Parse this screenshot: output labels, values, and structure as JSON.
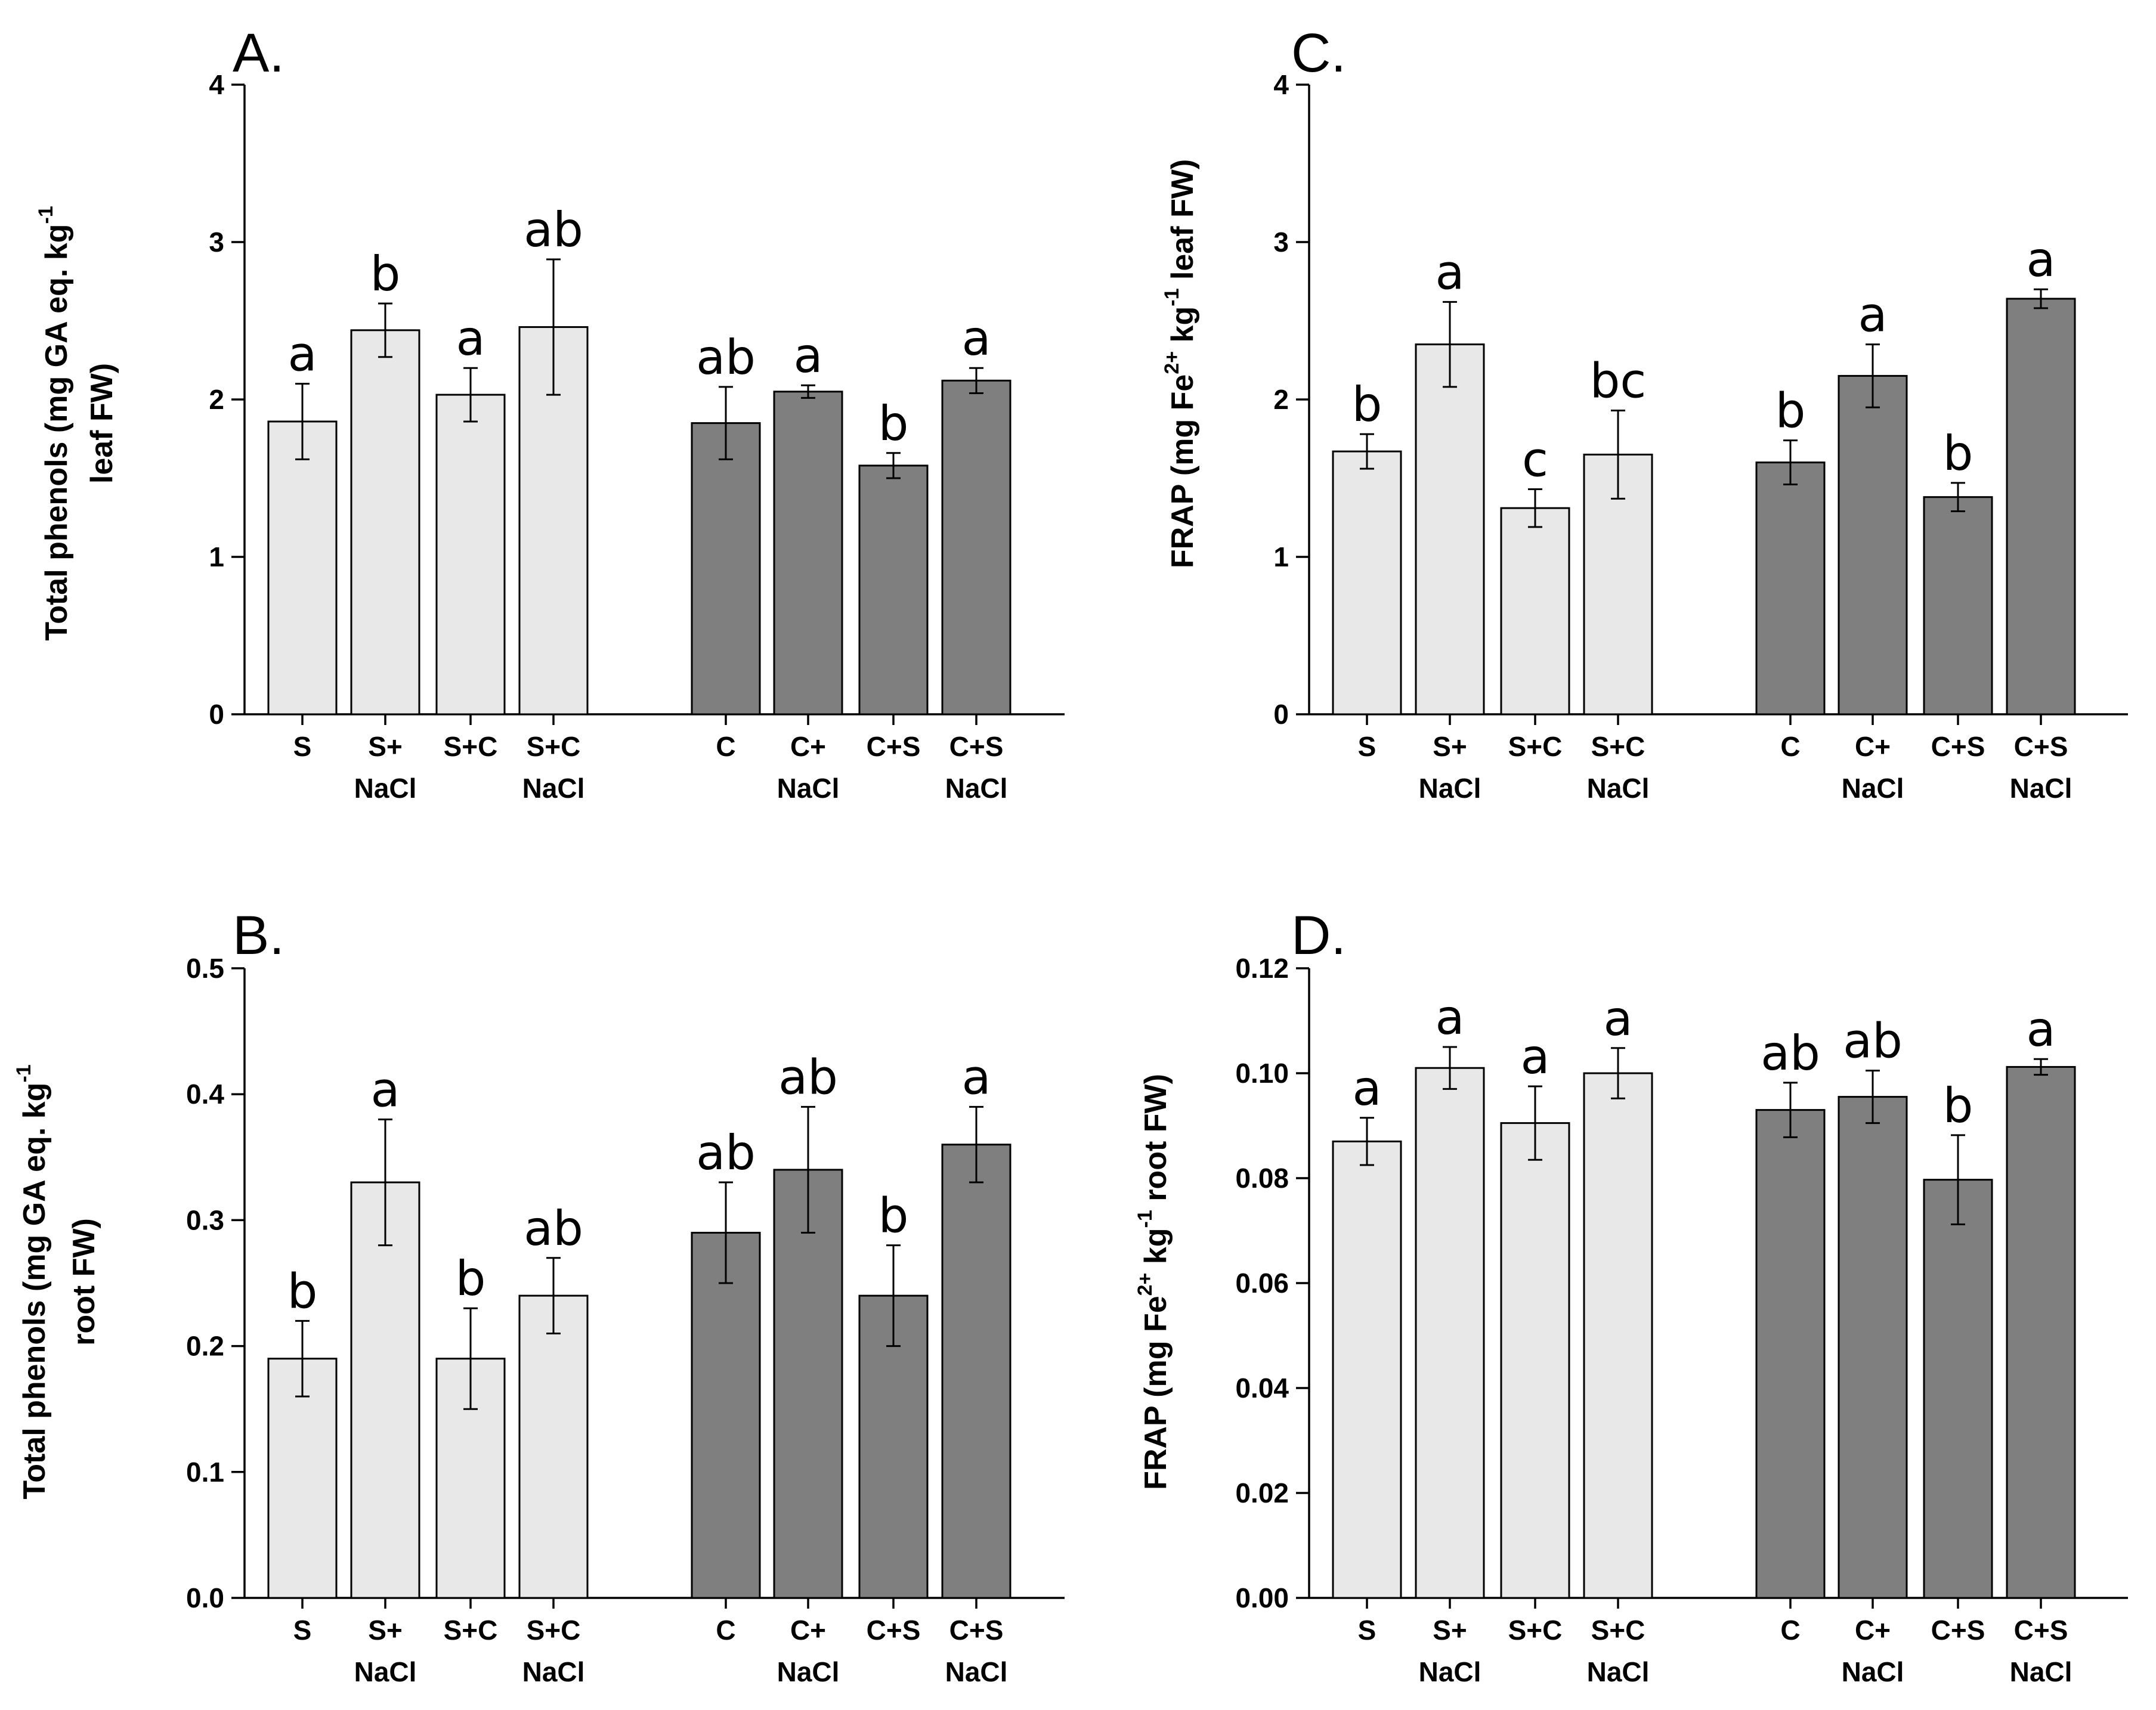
{
  "chart_data": [
    {
      "id": "A",
      "type": "bar",
      "panel_label": "A.",
      "ylabel_lines": [
        {
          "text": "Total phenols (mg GA eq. kg"
        },
        {
          "text": "leaf FW)"
        }
      ],
      "ylabel_sup": "-1",
      "ylim": [
        0,
        4
      ],
      "yticks": [
        "0",
        "1",
        "2",
        "3",
        "4"
      ],
      "ytick_values": [
        0,
        1,
        2,
        3,
        4
      ],
      "categories": [
        {
          "line1": "S",
          "line2": ""
        },
        {
          "line1": "S+",
          "line2": "NaCl"
        },
        {
          "line1": "S+C",
          "line2": ""
        },
        {
          "line1": "S+C",
          "line2": "NaCl"
        },
        {
          "line1": "C",
          "line2": ""
        },
        {
          "line1": "C+",
          "line2": "NaCl"
        },
        {
          "line1": "C+S",
          "line2": ""
        },
        {
          "line1": "C+S",
          "line2": "NaCl"
        }
      ],
      "values": [
        1.86,
        2.44,
        2.03,
        2.46,
        1.85,
        2.05,
        1.58,
        2.12
      ],
      "errors": [
        0.24,
        0.17,
        0.17,
        0.43,
        0.23,
        0.04,
        0.08,
        0.08
      ],
      "letters": [
        "a",
        "b",
        "a",
        "ab",
        "ab",
        "a",
        "b",
        "a"
      ],
      "group_colors": [
        "#e8e8e8",
        "#7f7f7f"
      ]
    },
    {
      "id": "B",
      "type": "bar",
      "panel_label": "B.",
      "ylabel_lines": [
        {
          "text": "Total phenols (mg GA eq. kg"
        },
        {
          "text": "root FW)"
        }
      ],
      "ylabel_sup": "-1",
      "ylim": [
        0,
        0.5
      ],
      "yticks": [
        "0.0",
        "0.1",
        "0.2",
        "0.3",
        "0.4",
        "0.5"
      ],
      "ytick_values": [
        0,
        0.1,
        0.2,
        0.3,
        0.4,
        0.5
      ],
      "categories": [
        {
          "line1": "S",
          "line2": ""
        },
        {
          "line1": "S+",
          "line2": "NaCl"
        },
        {
          "line1": "S+C",
          "line2": ""
        },
        {
          "line1": "S+C",
          "line2": "NaCl"
        },
        {
          "line1": "C",
          "line2": ""
        },
        {
          "line1": "C+",
          "line2": "NaCl"
        },
        {
          "line1": "C+S",
          "line2": ""
        },
        {
          "line1": "C+S",
          "line2": "NaCl"
        }
      ],
      "values": [
        0.19,
        0.33,
        0.19,
        0.24,
        0.29,
        0.34,
        0.24,
        0.36
      ],
      "errors": [
        0.03,
        0.05,
        0.04,
        0.03,
        0.04,
        0.05,
        0.04,
        0.03
      ],
      "letters": [
        "b",
        "a",
        "b",
        "ab",
        "ab",
        "ab",
        "b",
        "a"
      ],
      "group_colors": [
        "#e8e8e8",
        "#7f7f7f"
      ]
    },
    {
      "id": "C",
      "type": "bar",
      "panel_label": "C.",
      "ylabel_lines": [
        {
          "text": "FRAP (mg Fe"
        },
        {
          "text": " kg"
        },
        {
          "text": " leaf FW)"
        }
      ],
      "ylabel_sup": "2+",
      "ylabel_sup2": "-1",
      "ylim": [
        0,
        4
      ],
      "yticks": [
        "0",
        "1",
        "2",
        "3",
        "4"
      ],
      "ytick_values": [
        0,
        1,
        2,
        3,
        4
      ],
      "categories": [
        {
          "line1": "S",
          "line2": ""
        },
        {
          "line1": "S+",
          "line2": "NaCl"
        },
        {
          "line1": "S+C",
          "line2": ""
        },
        {
          "line1": "S+C",
          "line2": "NaCl"
        },
        {
          "line1": "C",
          "line2": ""
        },
        {
          "line1": "C+",
          "line2": "NaCl"
        },
        {
          "line1": "C+S",
          "line2": ""
        },
        {
          "line1": "C+S",
          "line2": "NaCl"
        }
      ],
      "values": [
        1.67,
        2.35,
        1.31,
        1.65,
        1.6,
        2.15,
        1.38,
        2.64
      ],
      "errors": [
        0.11,
        0.27,
        0.12,
        0.28,
        0.14,
        0.2,
        0.09,
        0.06
      ],
      "letters": [
        "b",
        "a",
        "c",
        "bc",
        "b",
        "a",
        "b",
        "a"
      ],
      "group_colors": [
        "#e8e8e8",
        "#7f7f7f"
      ]
    },
    {
      "id": "D",
      "type": "bar",
      "panel_label": "D.",
      "ylabel_lines": [
        {
          "text": "FRAP (mg Fe"
        },
        {
          "text": " kg"
        },
        {
          "text": " root FW)"
        }
      ],
      "ylabel_sup": "2+",
      "ylabel_sup2": "-1",
      "ylim": [
        0,
        0.12
      ],
      "yticks": [
        "0.00",
        "0.02",
        "0.04",
        "0.06",
        "0.08",
        "0.10",
        "0.12"
      ],
      "ytick_values": [
        0,
        0.02,
        0.04,
        0.06,
        0.08,
        0.1,
        0.12
      ],
      "categories": [
        {
          "line1": "S",
          "line2": ""
        },
        {
          "line1": "S+",
          "line2": "NaCl"
        },
        {
          "line1": "S+C",
          "line2": ""
        },
        {
          "line1": "S+C",
          "line2": "NaCl"
        },
        {
          "line1": "C",
          "line2": ""
        },
        {
          "line1": "C+",
          "line2": "NaCl"
        },
        {
          "line1": "C+S",
          "line2": ""
        },
        {
          "line1": "C+S",
          "line2": "NaCl"
        }
      ],
      "values": [
        0.087,
        0.101,
        0.0905,
        0.1,
        0.093,
        0.0955,
        0.0797,
        0.1012
      ],
      "errors": [
        0.0045,
        0.004,
        0.007,
        0.0048,
        0.0052,
        0.005,
        0.0085,
        0.0015
      ],
      "letters": [
        "a",
        "a",
        "a",
        "a",
        "ab",
        "ab",
        "b",
        "a"
      ],
      "group_colors": [
        "#e8e8e8",
        "#7f7f7f"
      ]
    }
  ]
}
